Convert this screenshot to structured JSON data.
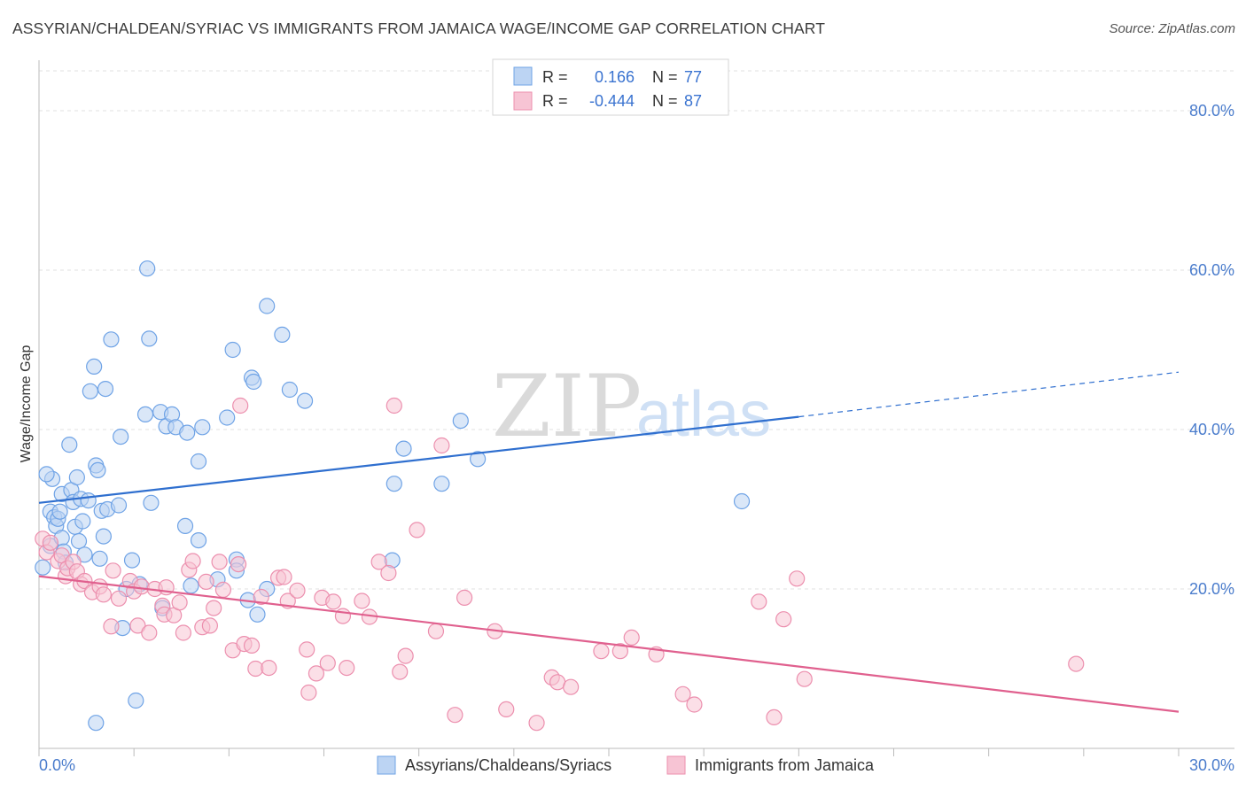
{
  "header": {
    "title": "ASSYRIAN/CHALDEAN/SYRIAC VS IMMIGRANTS FROM JAMAICA WAGE/INCOME GAP CORRELATION CHART",
    "source": "Source: ZipAtlas.com"
  },
  "watermark": {
    "zip": "ZIP",
    "atlas": "atlas"
  },
  "legend": {
    "r_label": "R =",
    "n_label": "N =",
    "rows": [
      {
        "r": "0.166",
        "n": "77",
        "color": "#a9c8f0"
      },
      {
        "r": "-0.444",
        "n": "87",
        "color": "#f5b6c8"
      }
    ]
  },
  "chart_data": {
    "type": "scatter",
    "title": "ASSYRIAN/CHALDEAN/SYRIAC VS IMMIGRANTS FROM JAMAICA WAGE/INCOME GAP CORRELATION CHART",
    "xlabel": "",
    "ylabel": "Wage/Income Gap",
    "xlim": [
      0,
      30
    ],
    "ylim": [
      0,
      85
    ],
    "x_tick_labels": [
      "0.0%",
      "30.0%"
    ],
    "y_ticks": [
      20,
      40,
      60,
      80
    ],
    "y_tick_labels": [
      "20.0%",
      "40.0%",
      "60.0%",
      "80.0%"
    ],
    "grid": true,
    "series": [
      {
        "name": "Assyrians/Chaldeans/Syriacs",
        "color": "#6fa3e6",
        "fill": "#bcd4f3",
        "trend": {
          "x": [
            0,
            20
          ],
          "y": [
            30.8,
            41.6
          ],
          "dashed_to": [
            30,
            47.2
          ]
        },
        "points": [
          [
            0.1,
            22.7
          ],
          [
            0.3,
            25.4
          ],
          [
            0.3,
            29.7
          ],
          [
            0.35,
            33.8
          ],
          [
            0.4,
            29.0
          ],
          [
            0.45,
            27.9
          ],
          [
            0.5,
            28.8
          ],
          [
            0.55,
            29.7
          ],
          [
            0.6,
            31.9
          ],
          [
            0.6,
            26.4
          ],
          [
            0.65,
            24.7
          ],
          [
            0.7,
            23.3
          ],
          [
            0.8,
            38.1
          ],
          [
            0.85,
            32.4
          ],
          [
            0.9,
            30.9
          ],
          [
            0.95,
            27.8
          ],
          [
            1.0,
            34.0
          ],
          [
            1.05,
            26.0
          ],
          [
            1.1,
            31.3
          ],
          [
            1.15,
            28.5
          ],
          [
            1.2,
            24.3
          ],
          [
            1.3,
            31.1
          ],
          [
            1.35,
            44.8
          ],
          [
            1.45,
            47.9
          ],
          [
            1.5,
            35.5
          ],
          [
            1.55,
            34.9
          ],
          [
            1.6,
            23.8
          ],
          [
            1.65,
            29.8
          ],
          [
            1.7,
            26.6
          ],
          [
            1.75,
            45.1
          ],
          [
            1.8,
            30.0
          ],
          [
            1.9,
            51.3
          ],
          [
            2.1,
            30.5
          ],
          [
            2.15,
            39.1
          ],
          [
            2.2,
            15.1
          ],
          [
            2.3,
            20.0
          ],
          [
            2.45,
            23.6
          ],
          [
            2.55,
            6.0
          ],
          [
            2.65,
            20.6
          ],
          [
            2.8,
            41.9
          ],
          [
            2.85,
            60.2
          ],
          [
            2.9,
            51.4
          ],
          [
            2.95,
            30.8
          ],
          [
            3.2,
            42.2
          ],
          [
            3.25,
            17.6
          ],
          [
            3.35,
            40.4
          ],
          [
            3.5,
            41.9
          ],
          [
            3.6,
            40.3
          ],
          [
            3.85,
            27.9
          ],
          [
            3.9,
            39.6
          ],
          [
            4.0,
            20.4
          ],
          [
            4.2,
            26.1
          ],
          [
            4.2,
            36.0
          ],
          [
            4.3,
            40.3
          ],
          [
            4.7,
            21.2
          ],
          [
            4.95,
            41.5
          ],
          [
            5.1,
            50.0
          ],
          [
            5.2,
            23.7
          ],
          [
            5.2,
            22.3
          ],
          [
            5.5,
            18.6
          ],
          [
            5.6,
            46.5
          ],
          [
            5.65,
            46.0
          ],
          [
            5.75,
            16.8
          ],
          [
            6.0,
            55.5
          ],
          [
            6.0,
            20.0
          ],
          [
            6.4,
            51.9
          ],
          [
            6.6,
            45.0
          ],
          [
            7.0,
            43.6
          ],
          [
            9.3,
            23.6
          ],
          [
            9.35,
            33.2
          ],
          [
            9.6,
            37.6
          ],
          [
            10.6,
            33.2
          ],
          [
            11.1,
            41.1
          ],
          [
            11.55,
            36.3
          ],
          [
            18.5,
            31.0
          ],
          [
            1.5,
            3.2
          ],
          [
            0.2,
            34.4
          ]
        ]
      },
      {
        "name": "Immigrants from Jamaica",
        "color": "#ec8fae",
        "fill": "#f7c4d4",
        "trend": {
          "x": [
            0,
            30
          ],
          "y": [
            21.6,
            4.6
          ]
        },
        "points": [
          [
            0.1,
            26.3
          ],
          [
            0.2,
            24.6
          ],
          [
            0.3,
            25.8
          ],
          [
            0.5,
            23.5
          ],
          [
            0.6,
            24.2
          ],
          [
            0.7,
            21.6
          ],
          [
            0.75,
            22.6
          ],
          [
            0.9,
            23.4
          ],
          [
            1.0,
            22.2
          ],
          [
            1.1,
            20.6
          ],
          [
            1.2,
            21.0
          ],
          [
            1.4,
            19.6
          ],
          [
            1.6,
            20.3
          ],
          [
            1.7,
            19.3
          ],
          [
            1.9,
            15.3
          ],
          [
            1.95,
            22.3
          ],
          [
            2.1,
            18.8
          ],
          [
            2.4,
            21.0
          ],
          [
            2.5,
            19.7
          ],
          [
            2.6,
            15.4
          ],
          [
            2.7,
            20.3
          ],
          [
            2.9,
            14.5
          ],
          [
            3.05,
            20.0
          ],
          [
            3.25,
            17.9
          ],
          [
            3.3,
            16.8
          ],
          [
            3.35,
            20.2
          ],
          [
            3.55,
            16.7
          ],
          [
            3.7,
            18.3
          ],
          [
            3.8,
            14.5
          ],
          [
            3.95,
            22.4
          ],
          [
            4.05,
            23.5
          ],
          [
            4.3,
            15.2
          ],
          [
            4.4,
            20.9
          ],
          [
            4.5,
            15.4
          ],
          [
            4.6,
            17.6
          ],
          [
            4.75,
            23.4
          ],
          [
            4.85,
            19.9
          ],
          [
            5.1,
            12.3
          ],
          [
            5.25,
            23.1
          ],
          [
            5.3,
            43.0
          ],
          [
            5.4,
            13.1
          ],
          [
            5.6,
            12.9
          ],
          [
            5.7,
            10.0
          ],
          [
            5.85,
            19.0
          ],
          [
            6.05,
            10.1
          ],
          [
            6.3,
            21.4
          ],
          [
            6.45,
            21.5
          ],
          [
            6.55,
            18.5
          ],
          [
            6.8,
            19.8
          ],
          [
            7.05,
            12.4
          ],
          [
            7.1,
            7.0
          ],
          [
            7.3,
            9.4
          ],
          [
            7.45,
            18.9
          ],
          [
            7.6,
            10.7
          ],
          [
            7.75,
            18.4
          ],
          [
            8.0,
            16.6
          ],
          [
            8.1,
            10.1
          ],
          [
            8.5,
            18.5
          ],
          [
            8.7,
            16.5
          ],
          [
            8.95,
            23.4
          ],
          [
            9.2,
            22.0
          ],
          [
            9.35,
            43.0
          ],
          [
            9.5,
            9.6
          ],
          [
            9.65,
            11.6
          ],
          [
            9.95,
            27.4
          ],
          [
            10.45,
            14.7
          ],
          [
            10.6,
            38.0
          ],
          [
            10.95,
            4.2
          ],
          [
            11.2,
            18.9
          ],
          [
            12.0,
            14.7
          ],
          [
            12.3,
            4.9
          ],
          [
            13.1,
            3.2
          ],
          [
            13.5,
            8.9
          ],
          [
            13.65,
            8.3
          ],
          [
            14.0,
            7.7
          ],
          [
            14.8,
            12.2
          ],
          [
            15.3,
            12.2
          ],
          [
            15.6,
            13.9
          ],
          [
            16.25,
            11.8
          ],
          [
            16.95,
            6.8
          ],
          [
            17.25,
            5.5
          ],
          [
            18.95,
            18.4
          ],
          [
            19.35,
            3.9
          ],
          [
            19.6,
            16.2
          ],
          [
            19.95,
            21.3
          ],
          [
            20.15,
            8.7
          ],
          [
            27.3,
            10.6
          ]
        ]
      }
    ]
  },
  "bottom_legend": [
    {
      "label": "Assyrians/Chaldeans/Syriacs"
    },
    {
      "label": "Immigrants from Jamaica"
    }
  ]
}
